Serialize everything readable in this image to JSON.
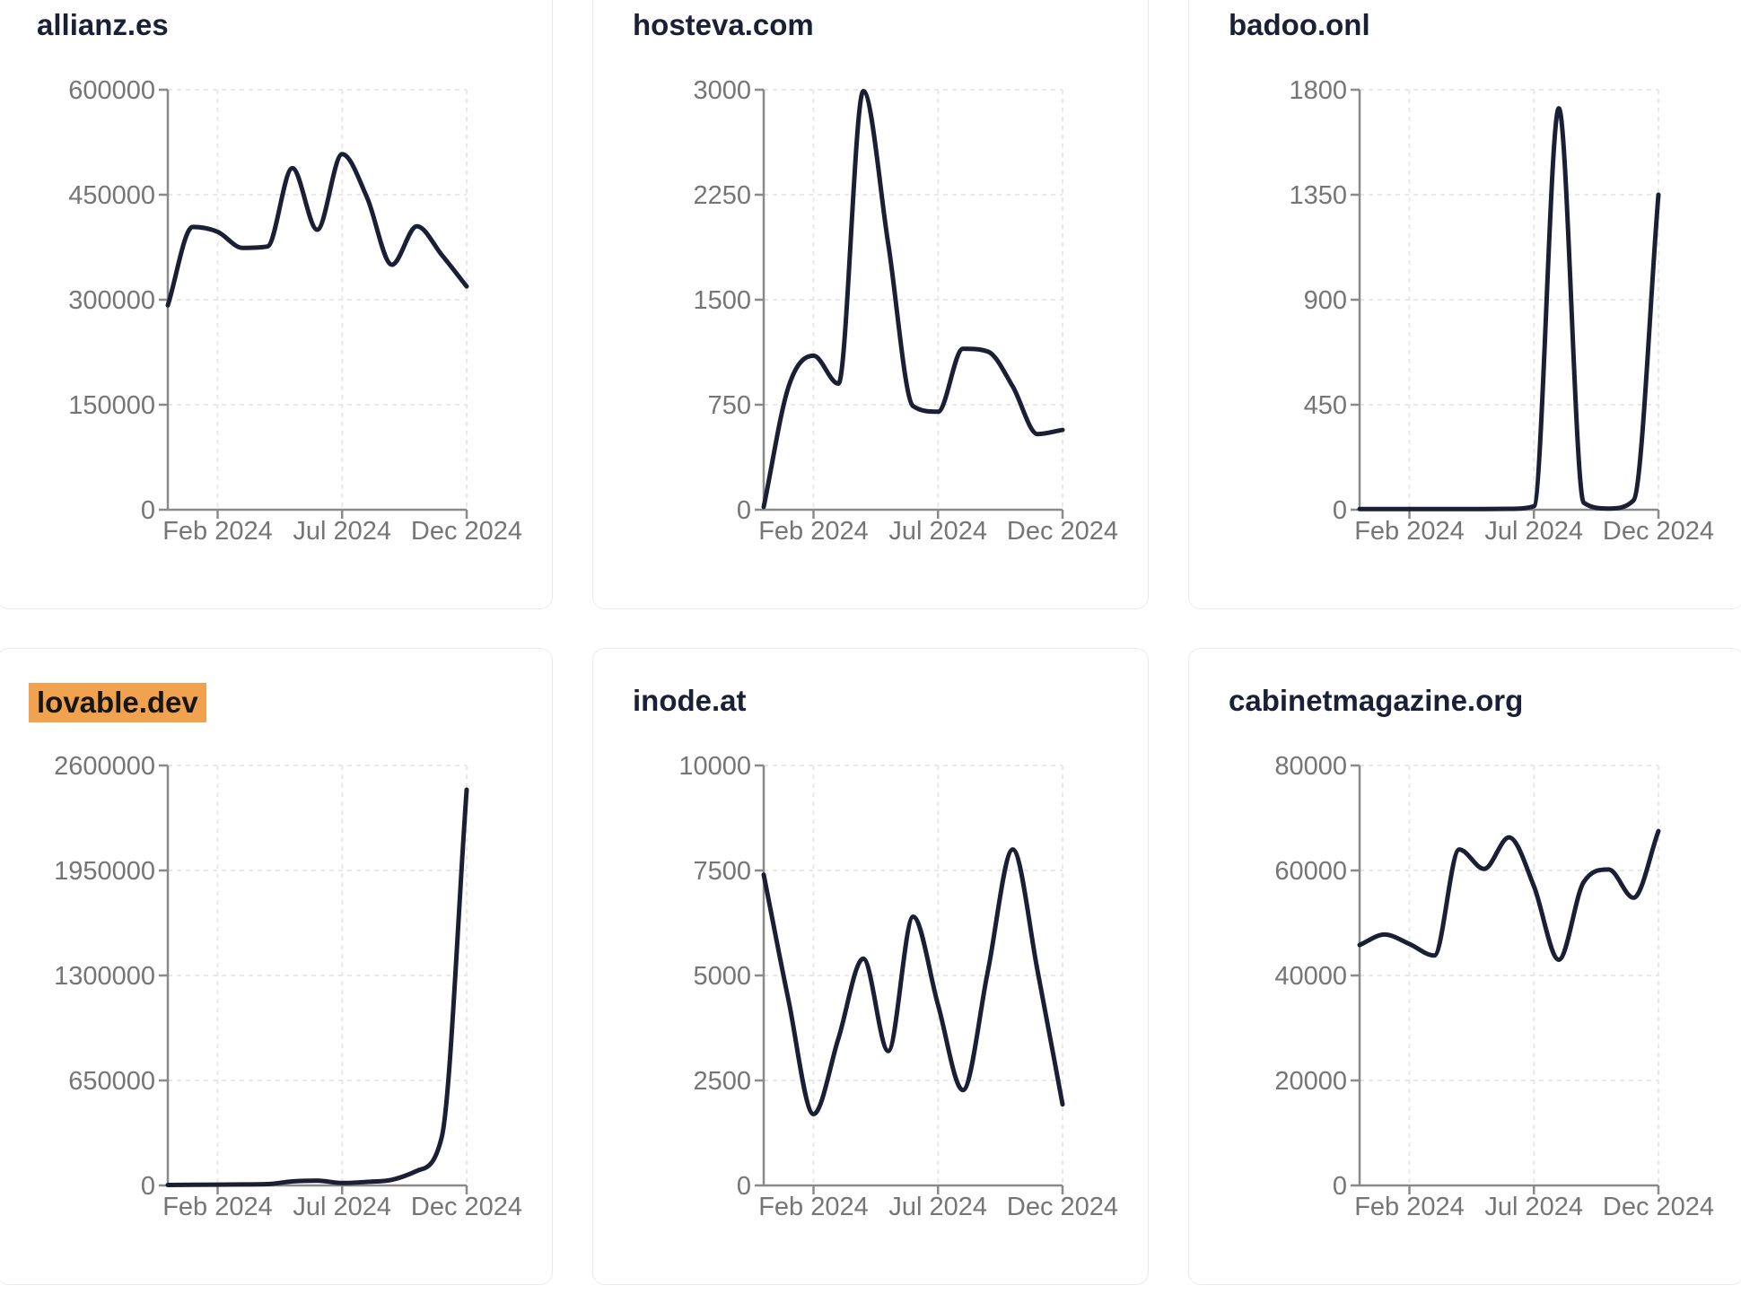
{
  "page": {
    "background": "#ffffff",
    "card_border_color": "#e9e9ef",
    "title_color": "#1a2035",
    "tick_label_color": "#757575",
    "axis_color": "#8a8a8a",
    "grid_color": "#e8e8e8",
    "line_color": "#1b1f35",
    "highlight_color": "#f0a24e"
  },
  "cards": [
    {
      "title": "allianz.es",
      "highlighted": false
    },
    {
      "title": "hosteva.com",
      "highlighted": false
    },
    {
      "title": "badoo.onl",
      "highlighted": false
    },
    {
      "title": "lovable.dev",
      "highlighted": true
    },
    {
      "title": "inode.at",
      "highlighted": false
    },
    {
      "title": "cabinetmagazine.org",
      "highlighted": false
    }
  ],
  "chart_data": [
    {
      "type": "line",
      "title": "allianz.es",
      "x": [
        "Dec 2023",
        "Jan 2024",
        "Feb 2024",
        "Mar 2024",
        "Apr 2024",
        "May 2024",
        "Jun 2024",
        "Jul 2024",
        "Aug 2024",
        "Sep 2024",
        "Oct 2024",
        "Nov 2024",
        "Dec 2024"
      ],
      "values": [
        292000,
        404000,
        397000,
        374000,
        376000,
        488000,
        400000,
        508000,
        446000,
        350000,
        405000,
        364000,
        319000
      ],
      "ylim": [
        0,
        600000
      ],
      "y_ticks": [
        0,
        150000,
        300000,
        450000,
        600000
      ],
      "x_tick_labels": [
        "Feb 2024",
        "Jul 2024",
        "Dec 2024"
      ],
      "x_tick_indices": [
        2,
        7,
        12
      ],
      "grid": true,
      "legend": "none",
      "line_color": "#1b1f35"
    },
    {
      "type": "line",
      "title": "hosteva.com",
      "x": [
        "Dec 2023",
        "Jan 2024",
        "Feb 2024",
        "Mar 2024",
        "Apr 2024",
        "May 2024",
        "Jun 2024",
        "Jul 2024",
        "Aug 2024",
        "Sep 2024",
        "Oct 2024",
        "Nov 2024",
        "Dec 2024"
      ],
      "values": [
        20,
        880,
        1100,
        900,
        2990,
        1900,
        740,
        700,
        1150,
        1130,
        880,
        540,
        570
      ],
      "ylim": [
        0,
        3000
      ],
      "y_ticks": [
        0,
        750,
        1500,
        2250,
        3000
      ],
      "x_tick_labels": [
        "Feb 2024",
        "Jul 2024",
        "Dec 2024"
      ],
      "x_tick_indices": [
        2,
        7,
        12
      ],
      "grid": true,
      "legend": "none",
      "line_color": "#1b1f35"
    },
    {
      "type": "line",
      "title": "badoo.onl",
      "x": [
        "Dec 2023",
        "Jan 2024",
        "Feb 2024",
        "Mar 2024",
        "Apr 2024",
        "May 2024",
        "Jun 2024",
        "Jul 2024",
        "Aug 2024",
        "Sep 2024",
        "Oct 2024",
        "Nov 2024",
        "Dec 2024"
      ],
      "values": [
        3,
        3,
        3,
        3,
        3,
        3,
        4,
        15,
        1720,
        30,
        5,
        40,
        1350
      ],
      "ylim": [
        0,
        1800
      ],
      "y_ticks": [
        0,
        450,
        900,
        1350,
        1800
      ],
      "x_tick_labels": [
        "Feb 2024",
        "Jul 2024",
        "Dec 2024"
      ],
      "x_tick_indices": [
        2,
        7,
        12
      ],
      "grid": true,
      "legend": "none",
      "line_color": "#1b1f35"
    },
    {
      "type": "line",
      "title": "lovable.dev",
      "x": [
        "Dec 2023",
        "Jan 2024",
        "Feb 2024",
        "Mar 2024",
        "Apr 2024",
        "May 2024",
        "Jun 2024",
        "Jul 2024",
        "Aug 2024",
        "Sep 2024",
        "Oct 2024",
        "Nov 2024",
        "Dec 2024"
      ],
      "values": [
        3000,
        4000,
        5000,
        6000,
        8000,
        25000,
        30000,
        15000,
        22000,
        35000,
        90000,
        300000,
        2450000
      ],
      "ylim": [
        0,
        2600000
      ],
      "y_ticks": [
        0,
        650000,
        1300000,
        1950000,
        2600000
      ],
      "x_tick_labels": [
        "Feb 2024",
        "Jul 2024",
        "Dec 2024"
      ],
      "x_tick_indices": [
        2,
        7,
        12
      ],
      "grid": true,
      "legend": "none",
      "line_color": "#1b1f35"
    },
    {
      "type": "line",
      "title": "inode.at",
      "x": [
        "Dec 2023",
        "Jan 2024",
        "Feb 2024",
        "Mar 2024",
        "Apr 2024",
        "May 2024",
        "Jun 2024",
        "Jul 2024",
        "Aug 2024",
        "Sep 2024",
        "Oct 2024",
        "Nov 2024",
        "Dec 2024"
      ],
      "values": [
        7400,
        4400,
        1700,
        3500,
        5400,
        3200,
        6400,
        4300,
        2270,
        5100,
        8000,
        5100,
        1930
      ],
      "ylim": [
        0,
        10000
      ],
      "y_ticks": [
        0,
        2500,
        5000,
        7500,
        10000
      ],
      "x_tick_labels": [
        "Feb 2024",
        "Jul 2024",
        "Dec 2024"
      ],
      "x_tick_indices": [
        2,
        7,
        12
      ],
      "grid": true,
      "legend": "none",
      "line_color": "#1b1f35"
    },
    {
      "type": "line",
      "title": "cabinetmagazine.org",
      "x": [
        "Dec 2023",
        "Jan 2024",
        "Feb 2024",
        "Mar 2024",
        "Apr 2024",
        "May 2024",
        "Jun 2024",
        "Jul 2024",
        "Aug 2024",
        "Sep 2024",
        "Oct 2024",
        "Nov 2024",
        "Dec 2024"
      ],
      "values": [
        45800,
        47800,
        46000,
        43800,
        64000,
        60300,
        66300,
        57000,
        43000,
        57800,
        60200,
        54800,
        67500
      ],
      "ylim": [
        0,
        80000
      ],
      "y_ticks": [
        0,
        20000,
        40000,
        60000,
        80000
      ],
      "x_tick_labels": [
        "Feb 2024",
        "Jul 2024",
        "Dec 2024"
      ],
      "x_tick_indices": [
        2,
        7,
        12
      ],
      "grid": true,
      "legend": "none",
      "line_color": "#1b1f35"
    }
  ]
}
